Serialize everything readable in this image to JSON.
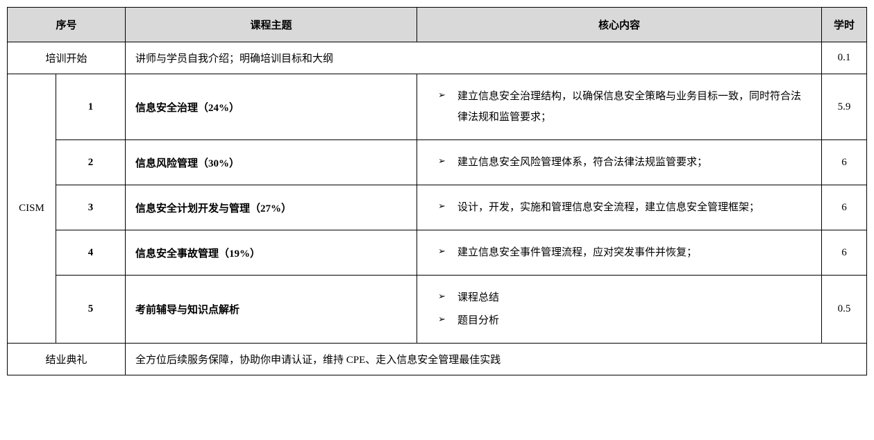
{
  "headers": {
    "seq": "序号",
    "topic": "课程主题",
    "content": "核心内容",
    "hours": "学时"
  },
  "intro": {
    "label": "培训开始",
    "description": "讲师与学员自我介绍；明确培训目标和大纲",
    "hours": "0.1"
  },
  "module_name": "CISM",
  "rows": [
    {
      "seq": "1",
      "topic": "信息安全治理（24%）",
      "content": [
        "建立信息安全治理结构，以确保信息安全策略与业务目标一致，同时符合法律法规和监管要求；"
      ],
      "hours": "5.9"
    },
    {
      "seq": "2",
      "topic": "信息风险管理（30%）",
      "content": [
        "建立信息安全风险管理体系，符合法律法规监管要求；"
      ],
      "hours": "6"
    },
    {
      "seq": "3",
      "topic": "信息安全计划开发与管理（27%）",
      "content": [
        "设计，开发，实施和管理信息安全流程，建立信息安全管理框架；"
      ],
      "hours": "6"
    },
    {
      "seq": "4",
      "topic": "信息安全事故管理（19%）",
      "content": [
        "建立信息安全事件管理流程，应对突发事件并恢复；"
      ],
      "hours": "6"
    },
    {
      "seq": "5",
      "topic": "考前辅导与知识点解析",
      "content": [
        "课程总结",
        "题目分析"
      ],
      "hours": "0.5"
    }
  ],
  "ceremony": {
    "label": "结业典礼",
    "description": "全方位后续服务保障，协助你申请认证，维持 CPE、走入信息安全管理最佳实践"
  }
}
